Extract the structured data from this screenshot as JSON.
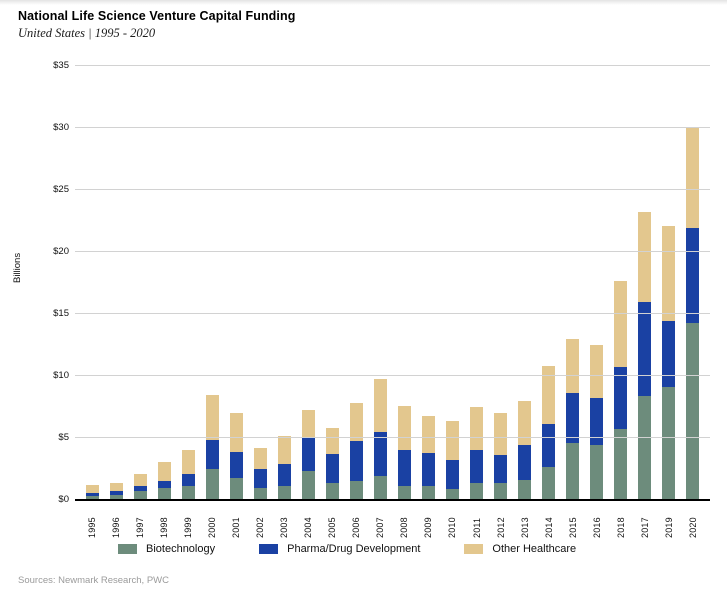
{
  "header": {
    "title": "National Life Science Venture Capital Funding",
    "subtitle": "United States  |  1995 - 2020"
  },
  "footer": {
    "sources": "Sources: Newmark Research, PWC"
  },
  "chart_data": {
    "type": "bar",
    "stacked": true,
    "title": "National Life Science Venture Capital Funding",
    "subtitle": "United States | 1995 - 2020",
    "ylabel": "Billions",
    "xlabel": "",
    "ylim": [
      0,
      35
    ],
    "grid": true,
    "legend_position": "bottom",
    "y_tick_values": [
      0,
      5,
      10,
      15,
      20,
      25,
      30,
      35
    ],
    "y_tick_labels": [
      "$0",
      "$5",
      "$10",
      "$15",
      "$20",
      "$25",
      "$30",
      "$35"
    ],
    "categories": [
      "1995",
      "1996",
      "1997",
      "1998",
      "1999",
      "2000",
      "2001",
      "2002",
      "2003",
      "2004",
      "2005",
      "2006",
      "2007",
      "2008",
      "2009",
      "2010",
      "2011",
      "2012",
      "2013",
      "2014",
      "2015",
      "2016",
      "2018",
      "2017",
      "2019",
      "2020"
    ],
    "series": [
      {
        "name": "Biotechnology",
        "color": "#6d8c7c",
        "values": [
          0.3,
          0.4,
          0.7,
          1.0,
          1.1,
          2.5,
          1.8,
          1.0,
          1.1,
          2.3,
          1.4,
          1.5,
          1.9,
          1.1,
          1.1,
          0.9,
          1.4,
          1.4,
          1.6,
          2.7,
          4.6,
          4.4,
          5.7,
          8.4,
          9.1,
          14.3
        ]
      },
      {
        "name": "Pharma/Drug Development",
        "color": "#1a41a3",
        "values": [
          0.3,
          0.3,
          0.4,
          0.5,
          1.0,
          2.3,
          2.1,
          1.5,
          1.8,
          2.7,
          2.3,
          3.3,
          3.6,
          2.9,
          2.7,
          2.3,
          2.6,
          2.2,
          2.8,
          3.4,
          4.0,
          3.8,
          5.0,
          7.6,
          5.3,
          7.6
        ]
      },
      {
        "name": "Other Healthcare",
        "color": "#e3c78e",
        "values": [
          0.6,
          0.7,
          1.0,
          1.6,
          1.9,
          3.7,
          3.1,
          1.7,
          2.3,
          2.3,
          2.1,
          3.0,
          4.3,
          3.6,
          3.0,
          3.2,
          3.5,
          3.4,
          3.6,
          4.7,
          4.4,
          4.3,
          7.0,
          7.2,
          7.7,
          8.1
        ]
      }
    ],
    "totals": [
      1.2,
      1.4,
      2.1,
      3.1,
      4.0,
      8.5,
      7.0,
      4.2,
      5.2,
      7.3,
      5.8,
      7.8,
      9.8,
      7.6,
      6.8,
      6.4,
      7.5,
      7.0,
      8.0,
      10.8,
      13.0,
      12.5,
      17.7,
      23.2,
      22.1,
      30.0
    ]
  }
}
